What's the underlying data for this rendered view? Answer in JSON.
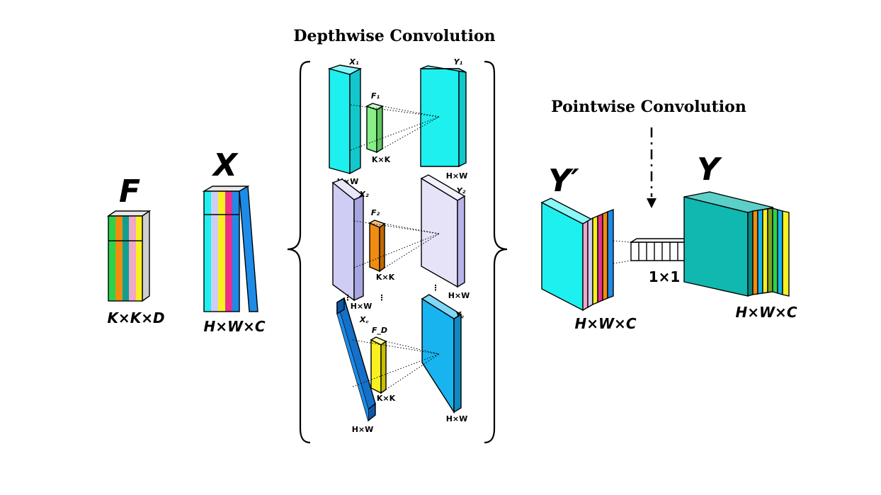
{
  "depthwise_title": "Depthwise Convolution",
  "pointwise_title": "Pointwise Convolution",
  "filter_block": {
    "name": "F",
    "dims": "K×K×D"
  },
  "input_block": {
    "name": "X",
    "dims": "H×W×C"
  },
  "mid_output_block": {
    "name": "Y′",
    "dims": "H×W×C"
  },
  "output_block": {
    "name": "Y",
    "dims": "H×W×C"
  },
  "pointwise_kernel": "1×1",
  "rows": [
    {
      "x": "X₁",
      "f": "F₁",
      "y": "Y₁",
      "k": "K×K",
      "hw_x": "H×W",
      "hw_y": "H×W"
    },
    {
      "x": "X₂",
      "f": "F₂",
      "y": "Y₂",
      "k": "K×K",
      "hw_x": "H×W",
      "hw_y": "H×W"
    },
    {
      "x": "X꜀",
      "f": "F_D",
      "y": "Y꜀",
      "k": "K×K",
      "hw_x": "H×W",
      "hw_y": "H×W"
    }
  ],
  "ellipsis": "⋮",
  "colors": {
    "cyan": "#1ef0f0",
    "lavender": "#cfcdf4",
    "pale_lavender": "#e6e3f8",
    "blue": "#1c8ce8",
    "sky": "#18b4f0",
    "green": "#88ee88",
    "orange": "#f08c10",
    "yellow": "#f8f020",
    "pink": "#f02080",
    "teal": "#10b8b0",
    "magenta": "#e8308c"
  }
}
